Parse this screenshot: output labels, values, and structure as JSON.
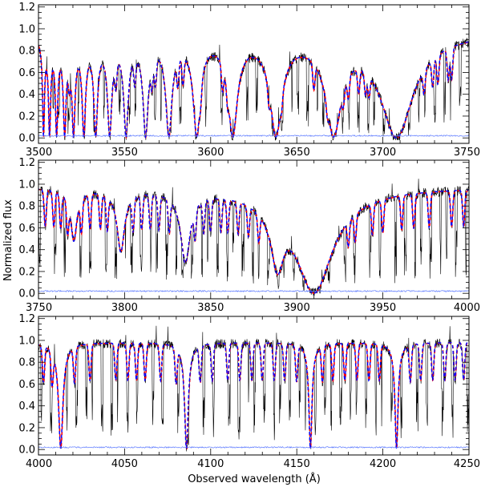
{
  "figure": {
    "ylabel": "Normalized flux",
    "xlabel": "Observed wavelength (Å)"
  },
  "colors": {
    "observed": "#000000",
    "model_a": "#ff0000",
    "model_b": "#0000ff",
    "error": "#5a78ff",
    "continuum": "#000000"
  },
  "chart_data": [
    {
      "type": "line",
      "panel": 1,
      "xlim": [
        3500,
        3750
      ],
      "ylim": [
        -0.05,
        1.22
      ],
      "x_ticks": [
        3500,
        3550,
        3600,
        3650,
        3700,
        3750
      ],
      "x_tick_labels": [
        "3500",
        "3550",
        "3600",
        "3650",
        "3700",
        "3750"
      ],
      "y_ticks": [
        0.0,
        0.2,
        0.4,
        0.6,
        0.8,
        1.0,
        1.2
      ],
      "y_tick_labels": [
        "0.0",
        "0.2",
        "0.4",
        "0.6",
        "0.8",
        "1.0",
        "1.2"
      ],
      "balmer_lines": [
        {
          "center": 3503.0,
          "depth": 0.99,
          "width": 0.6
        },
        {
          "center": 3506.5,
          "depth": 0.99,
          "width": 0.7
        },
        {
          "center": 3510.6,
          "depth": 0.99,
          "width": 0.8
        },
        {
          "center": 3515.3,
          "depth": 0.99,
          "width": 0.9
        },
        {
          "center": 3520.4,
          "depth": 0.99,
          "width": 1.0
        },
        {
          "center": 3526.4,
          "depth": 0.99,
          "width": 1.1
        },
        {
          "center": 3533.3,
          "depth": 0.99,
          "width": 1.2
        },
        {
          "center": 3541.4,
          "depth": 0.99,
          "width": 1.4
        },
        {
          "center": 3550.9,
          "depth": 0.99,
          "width": 1.5
        },
        {
          "center": 3562.3,
          "depth": 0.99,
          "width": 1.7
        },
        {
          "center": 3575.8,
          "depth": 0.99,
          "width": 2.0
        },
        {
          "center": 3592.0,
          "depth": 0.99,
          "width": 2.3
        },
        {
          "center": 3612.9,
          "depth": 0.99,
          "width": 3.0
        },
        {
          "center": 3638.0,
          "depth": 0.99,
          "width": 3.8
        },
        {
          "center": 3671.5,
          "depth": 0.99,
          "width": 5.0
        },
        {
          "center": 3708.0,
          "depth": 1.0,
          "width": 10.5
        }
      ],
      "metal_lines": [
        3518,
        3545,
        3556,
        3566,
        3568,
        3581,
        3584,
        3594,
        3607,
        3610,
        3634,
        3641,
        3660,
        3668,
        3677,
        3680,
        3686,
        3690,
        3692,
        3724,
        3729,
        3732,
        3738,
        3740
      ],
      "observed_noise_seed": 11,
      "error_level": 0.02
    },
    {
      "type": "line",
      "panel": 2,
      "xlim": [
        3750,
        4000
      ],
      "ylim": [
        -0.05,
        1.22
      ],
      "x_ticks": [
        3750,
        3800,
        3850,
        3900,
        3950,
        4000
      ],
      "x_tick_labels": [
        "3750",
        "3800",
        "3850",
        "3900",
        "3950",
        "4000"
      ],
      "y_ticks": [
        0.0,
        0.2,
        0.4,
        0.6,
        0.8,
        1.0,
        1.2
      ],
      "y_tick_labels": [
        "0.0",
        "0.2",
        "0.4",
        "0.6",
        "0.8",
        "1.0",
        "1.2"
      ],
      "balmer_lines": [
        {
          "center": 3770.6,
          "depth": 0.5,
          "width": 2.0
        },
        {
          "center": 3797.9,
          "depth": 0.6,
          "width": 2.4
        },
        {
          "center": 3835.4,
          "depth": 0.7,
          "width": 3.0
        },
        {
          "center": 3889.0,
          "depth": 0.75,
          "width": 4.0
        },
        {
          "center": 3910.0,
          "depth": 1.0,
          "width": 12.0
        }
      ],
      "metal_lines": [
        3754,
        3759,
        3763,
        3767,
        3775,
        3780,
        3786,
        3790,
        3805,
        3810,
        3815,
        3820,
        3826,
        3841,
        3846,
        3850,
        3856,
        3860,
        3866,
        3872,
        3878,
        3930,
        3934,
        3944,
        3950,
        3961,
        3968,
        3977,
        3990,
        3997
      ],
      "observed_noise_seed": 23,
      "error_level": 0.02
    },
    {
      "type": "line",
      "panel": 3,
      "xlim": [
        4000,
        4250
      ],
      "ylim": [
        -0.05,
        1.22
      ],
      "x_ticks": [
        4000,
        4050,
        4100,
        4150,
        4200,
        4250
      ],
      "x_tick_labels": [
        "4000",
        "4050",
        "4100",
        "4150",
        "4200",
        "4250"
      ],
      "y_ticks": [
        0.0,
        0.2,
        0.4,
        0.6,
        0.8,
        1.0,
        1.2
      ],
      "y_tick_labels": [
        "0.0",
        "0.2",
        "0.4",
        "0.6",
        "0.8",
        "1.0",
        "1.2"
      ],
      "balmer_lines": [
        {
          "center": 4013.0,
          "depth": 0.99,
          "width": 1.4
        },
        {
          "center": 4086.0,
          "depth": 0.99,
          "width": 1.2
        },
        {
          "center": 4158.0,
          "depth": 0.99,
          "width": 1.0
        },
        {
          "center": 4208.0,
          "depth": 0.99,
          "width": 1.0
        }
      ],
      "metal_lines": [
        4003,
        4008,
        4021,
        4030,
        4045,
        4052,
        4057,
        4062,
        4071,
        4080,
        4094,
        4101,
        4110,
        4117,
        4124,
        4130,
        4137,
        4143,
        4150,
        4165,
        4171,
        4178,
        4185,
        4192,
        4198,
        4216,
        4222,
        4229,
        4236,
        4242,
        4247
      ],
      "observed_noise_seed": 37,
      "error_level": 0.02
    }
  ]
}
